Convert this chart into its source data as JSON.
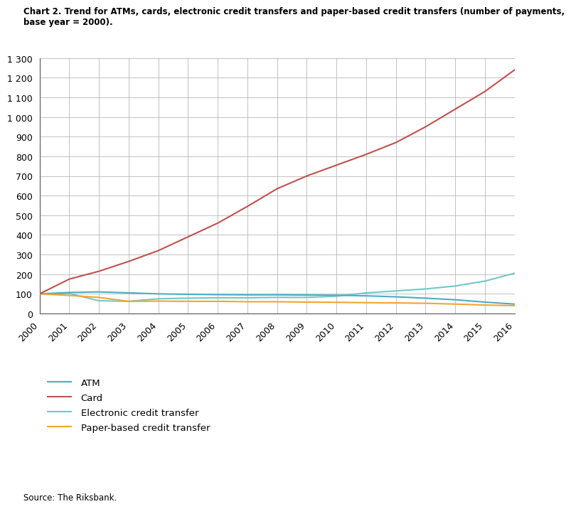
{
  "title_line1": "Chart 2. Trend for ATMs, cards, electronic credit transfers and paper-based credit transfers (number of payments,",
  "title_line2": "base year = 2000).",
  "source": "Source: The Riksbank.",
  "years": [
    2000,
    2001,
    2002,
    2003,
    2004,
    2005,
    2006,
    2007,
    2008,
    2009,
    2010,
    2011,
    2012,
    2013,
    2014,
    2015,
    2016
  ],
  "atm": [
    100,
    107,
    110,
    105,
    100,
    98,
    96,
    95,
    95,
    94,
    93,
    90,
    85,
    78,
    70,
    58,
    48
  ],
  "card": [
    100,
    175,
    215,
    265,
    320,
    390,
    460,
    545,
    635,
    700,
    755,
    810,
    870,
    950,
    1040,
    1130,
    1240
  ],
  "electronic_credit": [
    100,
    102,
    65,
    62,
    75,
    78,
    80,
    80,
    82,
    82,
    88,
    105,
    115,
    125,
    140,
    165,
    205
  ],
  "paper_credit": [
    100,
    92,
    82,
    62,
    63,
    62,
    62,
    60,
    60,
    58,
    57,
    55,
    54,
    52,
    48,
    43,
    40
  ],
  "atm_color": "#4bacc6",
  "card_color": "#c0504d",
  "electronic_color": "#70c8c8",
  "paper_color": "#f0a630",
  "ylim": [
    0,
    1300
  ],
  "yticks": [
    0,
    100,
    200,
    300,
    400,
    500,
    600,
    700,
    800,
    900,
    1000,
    1100,
    1200,
    1300
  ],
  "background_color": "#ffffff",
  "grid_color": "#aaaaaa",
  "legend_labels": [
    "ATM",
    "Card",
    "Electronic credit transfer",
    "Paper-based credit transfer"
  ]
}
